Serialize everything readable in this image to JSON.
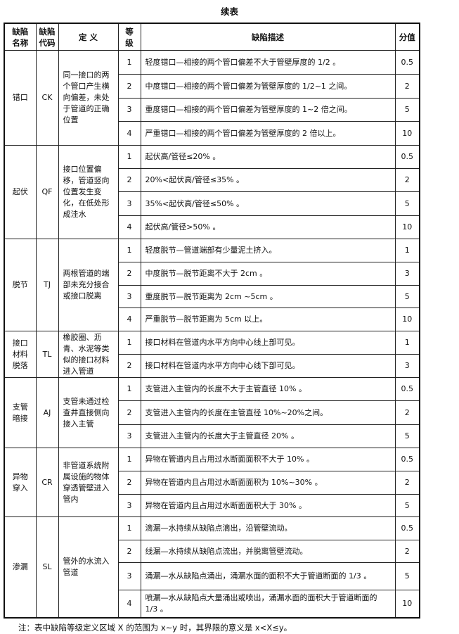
{
  "title": "续表",
  "headers": [
    "缺陷名称",
    "缺陷代码",
    "定 义",
    "等级",
    "缺陷描述",
    "分值"
  ],
  "groups": [
    {
      "name": "错口",
      "code": "CK",
      "definition": "同一接口的两个管口产生横向偏差，未处于管道的正确位置",
      "rows": [
        {
          "level": "1",
          "desc": "轻度错口—相接的两个管口偏差不大于管壁厚度的 1/2 。",
          "score": "0.5"
        },
        {
          "level": "2",
          "desc": "中度错口—相接的两个管口偏差为管壁厚度的 1/2~1 之间。",
          "score": "2"
        },
        {
          "level": "3",
          "desc": "重度错口—相接的两个管口偏差为管壁厚度的 1~2 倍之间。",
          "score": "5"
        },
        {
          "level": "4",
          "desc": "严重错口—相接的两个管口偏差为管壁厚度的 2 倍以上。",
          "score": "10"
        }
      ]
    },
    {
      "name": "起伏",
      "code": "QF",
      "definition": "接口位置偏移，管道竖向位置发生变化，在低处形成洼水",
      "rows": [
        {
          "level": "1",
          "desc": "起伏高/管径≤20% 。",
          "score": "0.5"
        },
        {
          "level": "2",
          "desc": "20%<起伏高/管径≤35% 。",
          "score": "2"
        },
        {
          "level": "3",
          "desc": "35%<起伏高/管径≤50% 。",
          "score": "5"
        },
        {
          "level": "4",
          "desc": "起伏高/管径>50% 。",
          "score": "10"
        }
      ]
    },
    {
      "name": "脱节",
      "code": "TJ",
      "definition": "两根管道的端部未充分接合或接口脱离",
      "rows": [
        {
          "level": "1",
          "desc": "轻度脱节—管道端部有少量泥土挤入。",
          "score": "1"
        },
        {
          "level": "2",
          "desc": "中度脱节—脱节距离不大于 2cm 。",
          "score": "3"
        },
        {
          "level": "3",
          "desc": "重度脱节—脱节距离为 2cm ~5cm 。",
          "score": "5"
        },
        {
          "level": "4",
          "desc": "严重脱节—脱节距离为 5cm 以上。",
          "score": "10"
        }
      ]
    },
    {
      "name": "接口材料脱落",
      "code": "TL",
      "definition": "橡胶圈、沥青、水泥等类似的接口材料进入管道",
      "rows": [
        {
          "level": "1",
          "desc": "接口材料在管道内水平方向中心线上部可见。",
          "score": "1"
        },
        {
          "level": "2",
          "desc": "接口材料在管道内水平方向中心线下部可见。",
          "score": "3"
        }
      ]
    },
    {
      "name": "支管暗接",
      "code": "AJ",
      "definition": "支管未通过检查井直接侧向接入主管",
      "rows": [
        {
          "level": "1",
          "desc": "支管进入主管内的长度不大于主管直径 10% 。",
          "score": "0.5"
        },
        {
          "level": "2",
          "desc": "支管进入主管内的长度在主管直径 10%~20%之间。",
          "score": "2"
        },
        {
          "level": "3",
          "desc": "支管进入主管内的长度大于主管直径 20% 。",
          "score": "5"
        }
      ]
    },
    {
      "name": "异物穿入",
      "code": "CR",
      "definition": "非管道系统附属设施的物体穿透管壁进入管内",
      "rows": [
        {
          "level": "1",
          "desc": "异物在管道内且占用过水断面面积不大于 10% 。",
          "score": "0.5"
        },
        {
          "level": "2",
          "desc": "异物在管道内且占用过水断面面积为 10%~30% 。",
          "score": "2"
        },
        {
          "level": "3",
          "desc": "异物在管道内且占用过水断面面积大于 30% 。",
          "score": "5"
        }
      ]
    },
    {
      "name": "渗漏",
      "code": "SL",
      "definition": "管外的水流入管道",
      "rows": [
        {
          "level": "1",
          "desc": "滴漏—水持续从缺陷点滴出，沿管壁流动。",
          "score": "0.5"
        },
        {
          "level": "2",
          "desc": "线漏—水持续从缺陷点流出，并脱离管壁流动。",
          "score": "2"
        },
        {
          "level": "3",
          "desc": "涌漏—水从缺陷点涌出，涌漏水面的面积不大于管道断面的 1/3 。",
          "score": "5"
        },
        {
          "level": "4",
          "desc": "喷漏—水从缺陷点大量涌出或喷出，涌漏水面的面积大于管道断面的 1/3 。",
          "score": "10"
        }
      ]
    }
  ],
  "note": "注：表中缺陷等级定义区域 X 的范围为 x~y 时，其界限的意义是 x<X≤y。"
}
